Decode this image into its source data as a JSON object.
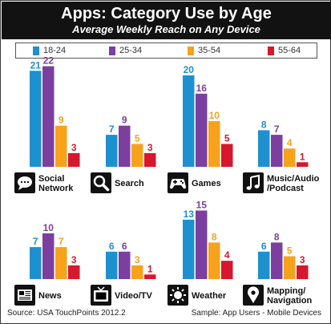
{
  "header": {
    "title": "Apps: Category Use by Age",
    "subtitle": "Average Weekly Reach on Any Device"
  },
  "legend": [
    {
      "label": "18-24",
      "color": "#1e90d0"
    },
    {
      "label": "25-34",
      "color": "#7b3fa0"
    },
    {
      "label": "35-54",
      "color": "#f7a21b"
    },
    {
      "label": "55-64",
      "color": "#d8162e"
    }
  ],
  "footer": {
    "source": "Source: USA TouchPoints 2012.2",
    "sample": "Sample: App Users - Mobile Devices"
  },
  "chart_data": {
    "type": "bar",
    "ylim": [
      0,
      22
    ],
    "grid": false,
    "legend_position": "top",
    "series_names": [
      "18-24",
      "25-34",
      "35-54",
      "55-64"
    ],
    "series_colors": [
      "#1e90d0",
      "#7b3fa0",
      "#f7a21b",
      "#d8162e"
    ],
    "panels": [
      {
        "category_lines": [
          "Social",
          "Network"
        ],
        "icon": "speech-bubble-icon",
        "values": [
          21,
          22,
          9,
          3
        ]
      },
      {
        "category_lines": [
          "Search"
        ],
        "icon": "magnifier-icon",
        "values": [
          7,
          9,
          5,
          3
        ]
      },
      {
        "category_lines": [
          "Games"
        ],
        "icon": "gamepad-icon",
        "values": [
          20,
          16,
          10,
          5
        ]
      },
      {
        "category_lines": [
          "Music/Audio",
          "/Podcast"
        ],
        "icon": "music-note-icon",
        "values": [
          8,
          7,
          4,
          1
        ]
      },
      {
        "category_lines": [
          "News"
        ],
        "icon": "newspaper-icon",
        "values": [
          7,
          10,
          7,
          3
        ]
      },
      {
        "category_lines": [
          "Video/TV"
        ],
        "icon": "television-icon",
        "values": [
          6,
          6,
          3,
          1
        ]
      },
      {
        "category_lines": [
          "Weather"
        ],
        "icon": "sun-icon",
        "values": [
          13,
          15,
          8,
          4
        ]
      },
      {
        "category_lines": [
          "Mapping/",
          "Navigation"
        ],
        "icon": "map-pin-icon",
        "values": [
          6,
          8,
          5,
          3
        ]
      }
    ]
  }
}
